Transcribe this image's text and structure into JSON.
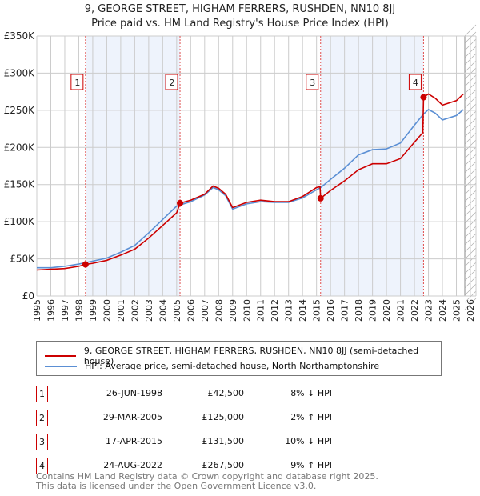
{
  "chart_data": {
    "type": "line",
    "title": "9, GEORGE STREET, HIGHAM FERRERS, RUSHDEN, NN10 8JJ",
    "subtitle": "Price paid vs. HM Land Registry's House Price Index (HPI)",
    "xlim": [
      1995,
      2026
    ],
    "ylim": [
      0,
      350000
    ],
    "yticks": [
      0,
      50000,
      100000,
      150000,
      200000,
      250000,
      300000,
      350000
    ],
    "ytick_labels": [
      "£0",
      "£50K",
      "£100K",
      "£150K",
      "£200K",
      "£250K",
      "£300K",
      "£350K"
    ],
    "xticks": [
      "1995",
      "1996",
      "1997",
      "1998",
      "1999",
      "2000",
      "2001",
      "2002",
      "2003",
      "2004",
      "2005",
      "2006",
      "2007",
      "2008",
      "2009",
      "2010",
      "2011",
      "2012",
      "2013",
      "2014",
      "2015",
      "2016",
      "2017",
      "2018",
      "2019",
      "2020",
      "2021",
      "2022",
      "2023",
      "2024",
      "2025",
      "2026"
    ],
    "grid": true,
    "shaded_periods": [
      [
        1998.48,
        2005.24
      ],
      [
        2015.29,
        2022.65
      ]
    ],
    "forecast_hatch_from": 2025.6,
    "series": [
      {
        "name": "9, GEORGE STREET, HIGHAM FERRERS, RUSHDEN, NN10 8JJ (semi-detached house)",
        "color": "#cc0000",
        "x": [
          1995,
          1996,
          1997,
          1998,
          1998.48,
          1999,
          2000,
          2001,
          2002,
          2003,
          2004,
          2005,
          2005.24,
          2006,
          2007,
          2007.6,
          2008,
          2008.5,
          2009,
          2010,
          2011,
          2012,
          2013,
          2014,
          2015,
          2015.25,
          2015.29,
          2016,
          2017,
          2018,
          2019,
          2020,
          2021,
          2022,
          2022.6,
          2022.65,
          2023,
          2023.5,
          2024,
          2025,
          2025.5
        ],
        "y": [
          35000,
          36000,
          37000,
          40000,
          42500,
          44000,
          48000,
          55000,
          63000,
          78000,
          95000,
          112000,
          125000,
          129000,
          137000,
          148000,
          145000,
          137000,
          119000,
          126000,
          129000,
          127000,
          127000,
          134000,
          146000,
          147000,
          131500,
          142000,
          155000,
          170000,
          178000,
          178000,
          185000,
          207000,
          220000,
          267500,
          272000,
          266000,
          257000,
          263000,
          272000
        ]
      },
      {
        "name": "HPI: Average price, semi-detached house, North Northamptonshire",
        "color": "#5b8fd4",
        "x": [
          1995,
          1996,
          1997,
          1998,
          1999,
          2000,
          2001,
          2002,
          2003,
          2004,
          2005,
          2006,
          2007,
          2007.6,
          2008,
          2008.5,
          2009,
          2010,
          2011,
          2012,
          2013,
          2014,
          2015,
          2015.3,
          2016,
          2017,
          2018,
          2019,
          2020,
          2021,
          2022,
          2022.65,
          2023,
          2023.5,
          2024,
          2025,
          2025.5
        ],
        "y": [
          38000,
          38000,
          40000,
          43000,
          47000,
          51000,
          59000,
          68000,
          85000,
          103000,
          121000,
          127000,
          136000,
          146000,
          143000,
          135000,
          117000,
          124000,
          127000,
          126000,
          126000,
          132000,
          143000,
          146000,
          157000,
          172000,
          190000,
          197000,
          198000,
          206000,
          230000,
          245000,
          251000,
          246000,
          237000,
          243000,
          251000
        ]
      }
    ],
    "sales": [
      {
        "label": "1",
        "x": 1998.48,
        "y": 42500,
        "date": "26-JUN-1998",
        "price": "£42,500",
        "hpi": "8% ↓ HPI"
      },
      {
        "label": "2",
        "x": 2005.24,
        "y": 125000,
        "date": "29-MAR-2005",
        "price": "£125,000",
        "hpi": "2% ↑ HPI"
      },
      {
        "label": "3",
        "x": 2015.29,
        "y": 131500,
        "date": "17-APR-2015",
        "price": "£131,500",
        "hpi": "10% ↓ HPI"
      },
      {
        "label": "4",
        "x": 2022.65,
        "y": 267500,
        "date": "24-AUG-2022",
        "price": "£267,500",
        "hpi": "9% ↑ HPI"
      }
    ]
  },
  "footer": {
    "line1": "Contains HM Land Registry data © Crown copyright and database right 2025.",
    "line2": "This data is licensed under the Open Government Licence v3.0."
  }
}
